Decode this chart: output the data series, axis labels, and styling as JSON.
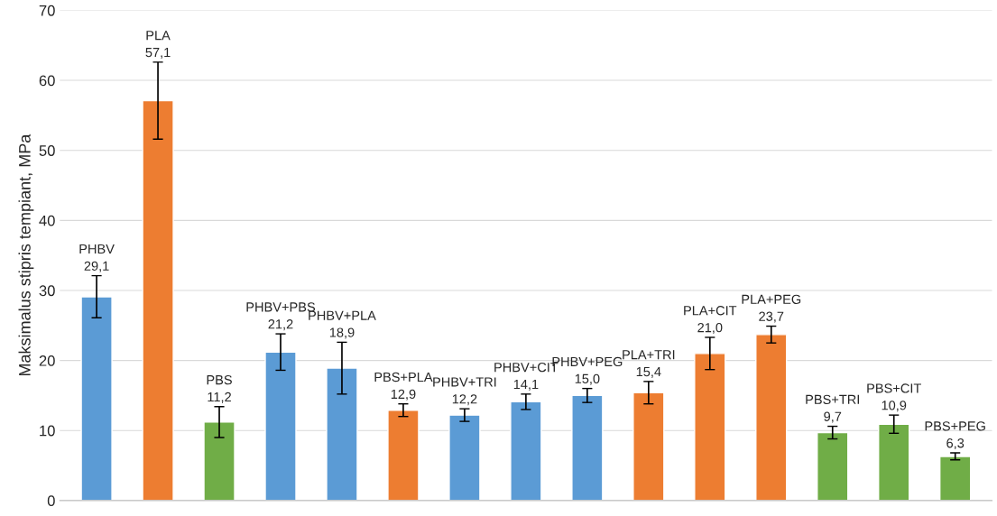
{
  "chart_data": {
    "type": "bar",
    "ylabel": "Maksimalus stipris tempiant, MPa",
    "categories": [
      null,
      null,
      null,
      null,
      null,
      null,
      null,
      null,
      null,
      null,
      null,
      null,
      null,
      null,
      null
    ],
    "values": [
      29.1,
      57.1,
      11.2,
      21.2,
      18.9,
      12.9,
      12.2,
      14.1,
      15.0,
      15.4,
      21.0,
      23.7,
      9.7,
      10.9,
      6.3
    ],
    "errors": [
      3.0,
      5.5,
      2.2,
      2.6,
      3.7,
      0.9,
      0.9,
      1.1,
      1.0,
      1.6,
      2.3,
      1.2,
      0.9,
      1.3,
      0.5
    ],
    "value_labels": [
      "PHBV\n29,1",
      "PLA\n57,1",
      "PBS\n11,2",
      "PHBV+PBS\n21,2",
      "PHBV+PLA\n18,9",
      "PBS+PLA\n12,9",
      "PHBV+TRI\n12,2",
      "PHBV+CIT\n14,1",
      "PHBV+PEG\n15,0",
      "PLA+TRI\n15,4",
      "PLA+CIT\n21,0",
      "PLA+PEG\n23,7",
      "PBS+TRI\n9,7",
      "PBS+CIT\n10,9",
      "PBS+PEG\n6,3"
    ],
    "colors": [
      "#5b9bd5",
      "#ed7d31",
      "#70ad47",
      "#5b9bd5",
      "#5b9bd5",
      "#ed7d31",
      "#5b9bd5",
      "#5b9bd5",
      "#5b9bd5",
      "#ed7d31",
      "#ed7d31",
      "#ed7d31",
      "#70ad47",
      "#70ad47",
      "#70ad47"
    ],
    "ylim": [
      0,
      70
    ],
    "yticks": [
      0,
      10,
      20,
      30,
      40,
      50,
      60,
      70
    ],
    "grid": "y",
    "tick_labels": "y"
  }
}
